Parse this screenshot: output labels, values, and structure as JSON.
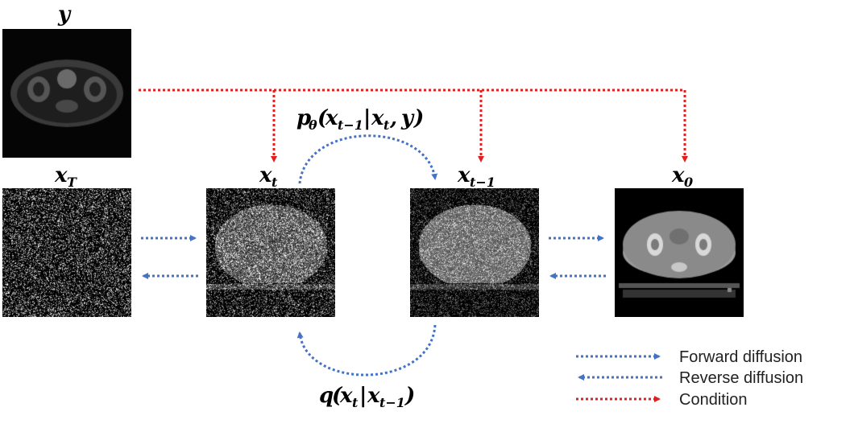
{
  "images": {
    "condition": {
      "label": "y",
      "kind": "mri"
    },
    "xT": {
      "label": "x",
      "sub": "T",
      "noise": 1.0
    },
    "xt": {
      "label": "x",
      "sub": "t",
      "noise": 0.85
    },
    "xt1": {
      "label": "x",
      "sub": "t−1",
      "noise": 0.55
    },
    "x0": {
      "label": "x",
      "sub": "0",
      "kind": "ct"
    }
  },
  "reverse_label": {
    "main": "p",
    "theta": "θ",
    "open": "(",
    "x1": "x",
    "s1": "t−1",
    "bar": "|",
    "x2": "x",
    "s2": "t",
    "comma": ",",
    "y": "y",
    "close": ")"
  },
  "forward_label": {
    "main": "q",
    "open": "(",
    "x1": "x",
    "s1": "t",
    "bar": "|",
    "x2": "x",
    "s2": "t−1",
    "close": ")"
  },
  "legend": [
    {
      "label": "Forward diffusion",
      "color": "#4472c4",
      "direction": "right"
    },
    {
      "label": "Reverse diffusion",
      "color": "#4472c4",
      "direction": "left"
    },
    {
      "label": "Condition",
      "color": "#e02020",
      "direction": "right"
    }
  ],
  "colors": {
    "blue": "#4472c4",
    "red": "#e02020"
  }
}
